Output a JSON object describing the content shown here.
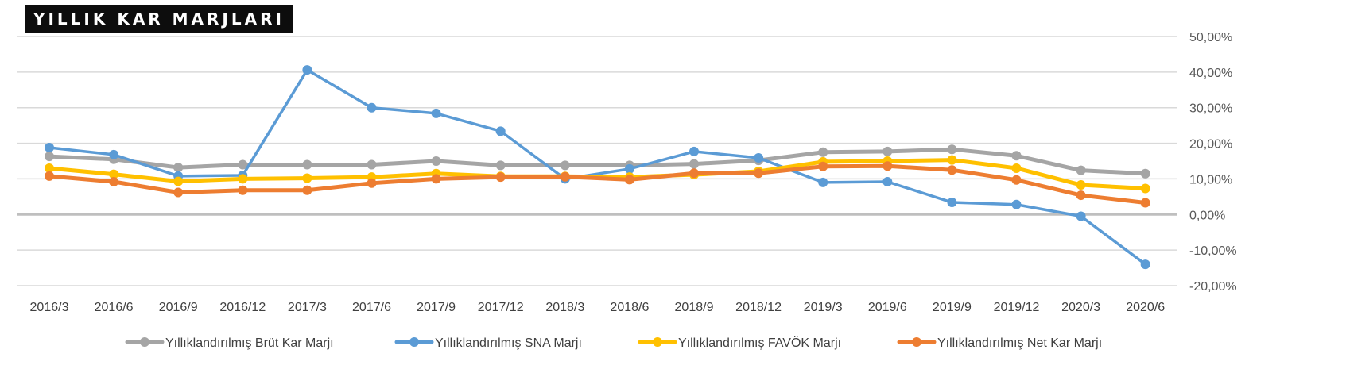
{
  "chart_data": {
    "type": "line",
    "title": "YILLIK KAR MARJLARI",
    "categories": [
      "2016/3",
      "2016/6",
      "2016/9",
      "2016/12",
      "2017/3",
      "2017/6",
      "2017/9",
      "2017/12",
      "2018/3",
      "2018/6",
      "2018/9",
      "2018/12",
      "2019/3",
      "2019/6",
      "2019/9",
      "2019/12",
      "2020/3",
      "2020/6"
    ],
    "ylim": [
      -20,
      50
    ],
    "yticks": [
      50,
      40,
      30,
      20,
      10,
      0,
      -10,
      -20
    ],
    "ytick_labels": [
      "50,00%",
      "40,00%",
      "30,00%",
      "20,00%",
      "10,00%",
      "0,00%",
      "-10,00%",
      "-20,00%"
    ],
    "grid": true,
    "legend_position": "bottom",
    "series": [
      {
        "name": "Yıllıklandırılmış Brüt Kar Marjı",
        "color": "#A5A5A5",
        "values": [
          16.3,
          15.5,
          13.2,
          14.0,
          14.0,
          14.0,
          15.0,
          13.8,
          13.8,
          13.8,
          14.2,
          15.2,
          17.5,
          17.7,
          18.3,
          16.5,
          12.4,
          11.5
        ]
      },
      {
        "name": "Yıllıklandırılmış SNA Marjı",
        "color": "#5B9BD5",
        "values": [
          18.8,
          16.8,
          10.8,
          11.0,
          40.6,
          30.0,
          28.4,
          23.4,
          10.0,
          12.8,
          17.7,
          15.9,
          9.0,
          9.2,
          3.4,
          2.8,
          -0.5,
          -14.0
        ]
      },
      {
        "name": "Yıllıklandırılmış FAVÖK Marjı",
        "color": "#FFC000",
        "values": [
          13.0,
          11.3,
          9.3,
          10.0,
          10.2,
          10.5,
          11.5,
          10.7,
          10.7,
          10.5,
          11.2,
          12.1,
          14.8,
          15.0,
          15.3,
          13.0,
          8.3,
          7.3
        ]
      },
      {
        "name": "Yıllıklandırılmış Net Kar Marjı",
        "color": "#ED7D31",
        "values": [
          10.8,
          9.2,
          6.2,
          6.8,
          6.8,
          8.8,
          10.0,
          10.5,
          10.6,
          9.8,
          11.6,
          11.6,
          13.5,
          13.6,
          12.5,
          9.7,
          5.4,
          3.3
        ]
      }
    ]
  }
}
